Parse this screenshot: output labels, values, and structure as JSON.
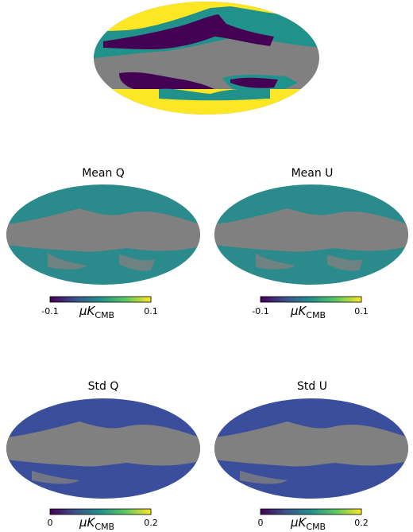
{
  "chart_data": [
    {
      "type": "heatmap",
      "title": "",
      "projection": "mollweide",
      "categorical_colors": [
        "#fde725",
        "#21918c",
        "#440154",
        "#808080"
      ]
    },
    {
      "type": "heatmap",
      "title": "Mean Q",
      "projection": "mollweide",
      "colorbar": {
        "min_label": "-0.1",
        "max_label": "0.1",
        "min": -0.1,
        "max": 0.1,
        "unit_main": "μK",
        "unit_sub": "CMB",
        "colormap": "viridis"
      }
    },
    {
      "type": "heatmap",
      "title": "Mean U",
      "projection": "mollweide",
      "colorbar": {
        "min_label": "-0.1",
        "max_label": "0.1",
        "min": -0.1,
        "max": 0.1,
        "unit_main": "μK",
        "unit_sub": "CMB",
        "colormap": "viridis"
      }
    },
    {
      "type": "heatmap",
      "title": "Std Q",
      "projection": "mollweide",
      "colorbar": {
        "min_label": "0",
        "max_label": "0.2",
        "min": 0,
        "max": 0.2,
        "unit_main": "μK",
        "unit_sub": "CMB",
        "colormap": "viridis"
      }
    },
    {
      "type": "heatmap",
      "title": "Std U",
      "projection": "mollweide",
      "colorbar": {
        "min_label": "0",
        "max_label": "0.2",
        "min": 0,
        "max": 0.2,
        "unit_main": "μK",
        "unit_sub": "CMB",
        "colormap": "viridis"
      }
    }
  ],
  "colors": {
    "mask_gray": "#808080",
    "viridis_dark": "#440154",
    "viridis_mid": "#21918c",
    "viridis_light": "#fde725",
    "mean_fill": "#2a8a8c",
    "std_fill": "#3b4e9b"
  }
}
